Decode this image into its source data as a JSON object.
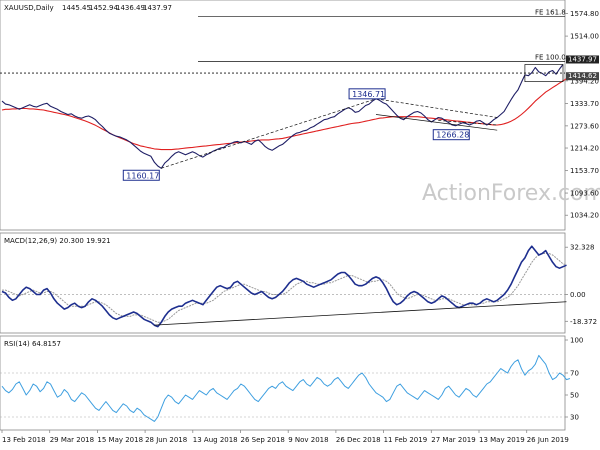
{
  "chart_data": {
    "type": "line",
    "title": "XAUUSD,Daily",
    "ohlc_header": [
      "1445.45",
      "1452.94",
      "1436.49",
      "1437.97"
    ],
    "watermark": "ActionForex.com",
    "colors": {
      "price": "#1f1f66",
      "sma": "#e02020",
      "macd": "#1e2f8f",
      "signal": "#999999",
      "rsi": "#3e9fe0",
      "trendline": "#111111",
      "annotation": "#1e2f8f"
    },
    "x_ticks": [
      "13 Feb 2018",
      "29 Mar 2018",
      "15 May 2018",
      "28 Jun 2018",
      "13 Aug 2018",
      "26 Sep 2018",
      "9 Nov 2018",
      "26 Dec 2018",
      "11 Feb 2019",
      "27 Mar 2019",
      "13 May 2019",
      "26 Jun 2019"
    ],
    "price_panel": {
      "ylim": [
        1000,
        1600
      ],
      "y_ticks": [
        "1574.80",
        "1514.00",
        "1453.50",
        "1394.20",
        "1333.70",
        "1273.60",
        "1214.20",
        "1153.70",
        "1093.60",
        "1034.20"
      ],
      "price_labels": [
        "1437.97",
        "1414.62"
      ],
      "fib_levels": [
        {
          "label": "FE 161.8",
          "value": 1566
        },
        {
          "label": "FE 100.0",
          "value": 1446
        }
      ],
      "support_line": 1415,
      "annotations": [
        {
          "label": "1160.17",
          "value": 1160.17
        },
        {
          "label": "1346.71",
          "value": 1346.71
        },
        {
          "label": "1266.28",
          "value": 1266.28
        }
      ],
      "series": [
        {
          "values": [
            1340,
            1332,
            1330,
            1326,
            1322,
            1318,
            1322,
            1326,
            1330,
            1326,
            1324,
            1328,
            1332,
            1334,
            1326,
            1322,
            1318,
            1312,
            1308,
            1304,
            1306,
            1300,
            1296,
            1294,
            1298,
            1300,
            1296,
            1290,
            1280,
            1272,
            1262,
            1254,
            1250,
            1246,
            1244,
            1240,
            1236,
            1230,
            1222,
            1214,
            1206,
            1200,
            1196,
            1192,
            1176,
            1166,
            1160,
            1174,
            1182,
            1192,
            1200,
            1204,
            1200,
            1196,
            1200,
            1204,
            1200,
            1194,
            1190,
            1196,
            1200,
            1206,
            1210,
            1214,
            1216,
            1222,
            1226,
            1230,
            1232,
            1228,
            1232,
            1228,
            1224,
            1232,
            1236,
            1228,
            1218,
            1212,
            1208,
            1214,
            1220,
            1224,
            1232,
            1240,
            1248,
            1254,
            1256,
            1260,
            1262,
            1268,
            1272,
            1278,
            1284,
            1290,
            1292,
            1296,
            1298,
            1306,
            1312,
            1318,
            1322,
            1318,
            1310,
            1312,
            1320,
            1328,
            1332,
            1340,
            1346,
            1342,
            1336,
            1332,
            1322,
            1312,
            1302,
            1294,
            1290,
            1298,
            1304,
            1310,
            1312,
            1308,
            1300,
            1290,
            1284,
            1290,
            1296,
            1294,
            1288,
            1282,
            1276,
            1274,
            1278,
            1282,
            1280,
            1276,
            1280,
            1286,
            1288,
            1282,
            1276,
            1282,
            1290,
            1296,
            1304,
            1312,
            1328,
            1344,
            1358,
            1370,
            1390,
            1410,
            1408,
            1416,
            1430,
            1418,
            1414,
            1408,
            1418,
            1422,
            1412,
            1426,
            1438
          ]
        },
        {
          "values": [
            1316,
            1318,
            1318,
            1319,
            1319,
            1320,
            1320,
            1320,
            1319,
            1319,
            1318,
            1317,
            1316,
            1314,
            1312,
            1310,
            1308,
            1306,
            1304,
            1302,
            1299,
            1296,
            1293,
            1290,
            1287,
            1283,
            1279,
            1275,
            1270,
            1265,
            1260,
            1255,
            1250,
            1246,
            1242,
            1238,
            1234,
            1230,
            1226,
            1223,
            1220,
            1218,
            1216,
            1214,
            1212,
            1211,
            1210,
            1210,
            1210,
            1210,
            1211,
            1212,
            1213,
            1214,
            1215,
            1216,
            1217,
            1218,
            1219,
            1220,
            1221,
            1222,
            1223,
            1224,
            1225,
            1226,
            1227,
            1228,
            1229,
            1230,
            1231,
            1232,
            1233,
            1234,
            1235,
            1236,
            1236,
            1236,
            1237,
            1238,
            1239,
            1240,
            1242,
            1244,
            1246,
            1248,
            1250,
            1252,
            1254,
            1256,
            1258,
            1260,
            1262,
            1264,
            1266,
            1268,
            1270,
            1272,
            1274,
            1276,
            1278,
            1280,
            1281,
            1282,
            1284,
            1286,
            1288,
            1290,
            1292,
            1294,
            1295,
            1296,
            1297,
            1298,
            1298,
            1298,
            1298,
            1298,
            1298,
            1298,
            1298,
            1297,
            1296,
            1295,
            1294,
            1293,
            1292,
            1291,
            1290,
            1289,
            1288,
            1287,
            1286,
            1285,
            1284,
            1283,
            1282,
            1281,
            1280,
            1279,
            1278,
            1277,
            1276,
            1276,
            1277,
            1279,
            1282,
            1286,
            1291,
            1297,
            1304,
            1312,
            1321,
            1330,
            1340,
            1348,
            1356,
            1364,
            1370,
            1376,
            1382,
            1388,
            1394,
            1400,
            1406
          ]
        }
      ]
    },
    "macd_panel": {
      "label": "MACD(12,26,9) 20.300 19.921",
      "ylim": [
        -25,
        40
      ],
      "y_ticks": [
        "32.328",
        "0.00",
        "-18.372"
      ],
      "series": [
        {
          "values": [
            2,
            1,
            -2,
            -4,
            -3,
            0,
            3,
            5,
            4,
            2,
            0,
            0,
            3,
            4,
            1,
            -3,
            -6,
            -8,
            -10,
            -9,
            -7,
            -6,
            -8,
            -9,
            -8,
            -5,
            -3,
            -4,
            -6,
            -8,
            -11,
            -14,
            -16,
            -17,
            -16,
            -15,
            -14,
            -13,
            -12,
            -13,
            -15,
            -17,
            -18,
            -19,
            -21,
            -22,
            -19,
            -15,
            -12,
            -10,
            -9,
            -8,
            -8,
            -6,
            -5,
            -4,
            -5,
            -6,
            -7,
            -4,
            -1,
            2,
            5,
            6,
            5,
            4,
            5,
            8,
            9,
            7,
            5,
            3,
            1,
            0,
            1,
            2,
            0,
            -2,
            -3,
            -2,
            0,
            2,
            5,
            8,
            10,
            11,
            10,
            9,
            7,
            6,
            5,
            6,
            7,
            8,
            9,
            10,
            12,
            14,
            15,
            15,
            13,
            10,
            7,
            6,
            6,
            7,
            9,
            11,
            12,
            11,
            8,
            4,
            -1,
            -5,
            -7,
            -6,
            -4,
            -1,
            1,
            2,
            1,
            -1,
            -3,
            -5,
            -6,
            -5,
            -3,
            -1,
            -2,
            -4,
            -6,
            -8,
            -9,
            -8,
            -7,
            -6,
            -6,
            -7,
            -6,
            -4,
            -3,
            -4,
            -5,
            -4,
            -2,
            0,
            3,
            7,
            12,
            17,
            22,
            25,
            30,
            33,
            30,
            27,
            28,
            30,
            26,
            22,
            19,
            18,
            19,
            20
          ]
        },
        {
          "values": [
            3,
            3,
            2,
            1,
            0,
            -1,
            0,
            1,
            2,
            3,
            2,
            1,
            1,
            2,
            2,
            1,
            -1,
            -3,
            -5,
            -7,
            -8,
            -8,
            -8,
            -8,
            -8,
            -7,
            -6,
            -5,
            -5,
            -6,
            -7,
            -9,
            -11,
            -13,
            -14,
            -15,
            -15,
            -15,
            -14,
            -14,
            -14,
            -15,
            -16,
            -17,
            -18,
            -19,
            -19,
            -18,
            -17,
            -15,
            -13,
            -11,
            -10,
            -9,
            -8,
            -7,
            -6,
            -6,
            -6,
            -6,
            -5,
            -4,
            -2,
            0,
            2,
            3,
            4,
            5,
            6,
            7,
            7,
            6,
            5,
            4,
            3,
            2,
            2,
            1,
            0,
            0,
            0,
            0,
            1,
            3,
            5,
            7,
            8,
            9,
            9,
            8,
            8,
            7,
            7,
            7,
            8,
            8,
            9,
            10,
            11,
            12,
            13,
            13,
            12,
            11,
            10,
            9,
            8,
            9,
            9,
            10,
            10,
            9,
            7,
            4,
            1,
            -1,
            -2,
            -3,
            -2,
            -1,
            0,
            0,
            -1,
            -2,
            -3,
            -4,
            -4,
            -3,
            -3,
            -3,
            -4,
            -5,
            -6,
            -7,
            -7,
            -7,
            -7,
            -7,
            -6,
            -6,
            -5,
            -5,
            -5,
            -5,
            -4,
            -3,
            -2,
            0,
            3,
            6,
            10,
            14,
            18,
            22,
            25,
            27,
            28,
            28,
            28,
            27,
            25,
            23,
            21,
            20
          ]
        }
      ]
    },
    "rsi_panel": {
      "label": "RSI(14) 64.8157",
      "ylim": [
        0,
        100
      ],
      "y_ticks": [
        "100",
        "70",
        "50",
        "30"
      ],
      "series": [
        {
          "values": [
            58,
            54,
            52,
            55,
            60,
            62,
            56,
            50,
            54,
            60,
            58,
            53,
            56,
            62,
            60,
            54,
            48,
            50,
            55,
            52,
            46,
            44,
            48,
            52,
            50,
            46,
            42,
            38,
            36,
            40,
            44,
            40,
            36,
            34,
            38,
            42,
            40,
            36,
            34,
            38,
            36,
            32,
            30,
            28,
            26,
            30,
            38,
            46,
            50,
            48,
            44,
            42,
            46,
            50,
            48,
            46,
            50,
            54,
            52,
            50,
            54,
            56,
            52,
            50,
            48,
            46,
            50,
            54,
            56,
            60,
            58,
            54,
            50,
            46,
            44,
            48,
            52,
            56,
            58,
            56,
            60,
            62,
            58,
            56,
            54,
            58,
            62,
            64,
            60,
            58,
            62,
            66,
            64,
            60,
            58,
            60,
            64,
            66,
            62,
            58,
            56,
            60,
            64,
            68,
            70,
            66,
            60,
            56,
            52,
            50,
            48,
            44,
            46,
            52,
            58,
            60,
            56,
            52,
            50,
            48,
            46,
            50,
            54,
            52,
            50,
            48,
            46,
            50,
            56,
            58,
            54,
            50,
            48,
            52,
            56,
            54,
            50,
            48,
            52,
            56,
            60,
            62,
            66,
            70,
            74,
            72,
            70,
            76,
            80,
            82,
            74,
            68,
            72,
            74,
            78,
            86,
            82,
            78,
            70,
            64,
            66,
            70,
            68,
            64,
            65
          ]
        }
      ]
    }
  }
}
